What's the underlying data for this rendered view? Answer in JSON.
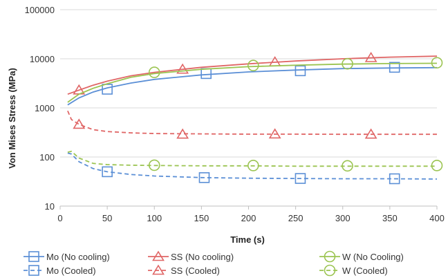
{
  "chart_data": {
    "type": "line",
    "title": "",
    "xlabel": "Time (s)",
    "ylabel": "Von Mises Stress (MPa)",
    "xlim": [
      0,
      400
    ],
    "ylim": [
      10,
      100000
    ],
    "y_scale": "log",
    "grid": "horizontal",
    "legend_position": "bottom",
    "x_ticks": [
      "0",
      "50",
      "100",
      "150",
      "200",
      "250",
      "300",
      "350",
      "400"
    ],
    "y_ticks": [
      "10",
      "100",
      "1000",
      "10000",
      "100000"
    ],
    "series": [
      {
        "name": "Mo (No cooling)",
        "color": "#5b8fd6",
        "dash": "solid",
        "marker": "square",
        "line": [
          [
            8,
            1150
          ],
          [
            20,
            1600
          ],
          [
            35,
            2100
          ],
          [
            50,
            2550
          ],
          [
            75,
            3200
          ],
          [
            100,
            3800
          ],
          [
            150,
            4700
          ],
          [
            200,
            5400
          ],
          [
            250,
            5900
          ],
          [
            300,
            6300
          ],
          [
            350,
            6500
          ],
          [
            400,
            6600
          ]
        ],
        "markers": [
          [
            50,
            2400
          ],
          [
            155,
            5000
          ],
          [
            255,
            5700
          ],
          [
            355,
            6700
          ]
        ]
      },
      {
        "name": "SS (No cooling)",
        "color": "#e06666",
        "dash": "solid",
        "marker": "triangle",
        "line": [
          [
            8,
            1900
          ],
          [
            20,
            2300
          ],
          [
            35,
            2900
          ],
          [
            50,
            3500
          ],
          [
            75,
            4500
          ],
          [
            100,
            5300
          ],
          [
            150,
            6700
          ],
          [
            200,
            7900
          ],
          [
            250,
            9000
          ],
          [
            300,
            10000
          ],
          [
            350,
            10800
          ],
          [
            400,
            11300
          ]
        ],
        "markers": [
          [
            20,
            2300
          ],
          [
            130,
            6100
          ],
          [
            228,
            8600
          ],
          [
            330,
            10500
          ]
        ]
      },
      {
        "name": "W (No Cooling)",
        "color": "#9bc451",
        "dash": "solid",
        "marker": "circle",
        "line": [
          [
            8,
            1300
          ],
          [
            20,
            1900
          ],
          [
            35,
            2500
          ],
          [
            50,
            3100
          ],
          [
            75,
            4200
          ],
          [
            100,
            5000
          ],
          [
            150,
            6100
          ],
          [
            200,
            6900
          ],
          [
            250,
            7400
          ],
          [
            300,
            7800
          ],
          [
            350,
            8000
          ],
          [
            400,
            8100
          ]
        ],
        "markers": [
          [
            100,
            5300
          ],
          [
            205,
            7300
          ],
          [
            305,
            7900
          ],
          [
            400,
            8300
          ]
        ]
      },
      {
        "name": "Mo (Cooled)",
        "color": "#5b8fd6",
        "dash": "dashed",
        "marker": "square",
        "line": [
          [
            8,
            120
          ],
          [
            12,
            115
          ],
          [
            20,
            80
          ],
          [
            35,
            58
          ],
          [
            50,
            50
          ],
          [
            75,
            44
          ],
          [
            100,
            41
          ],
          [
            150,
            38
          ],
          [
            200,
            37
          ],
          [
            250,
            36.5
          ],
          [
            300,
            36
          ],
          [
            350,
            36
          ],
          [
            400,
            35.5
          ]
        ],
        "markers": [
          [
            50,
            50
          ],
          [
            153,
            38
          ],
          [
            255,
            36.5
          ],
          [
            355,
            36
          ]
        ]
      },
      {
        "name": "SS (Cooled)",
        "color": "#e06666",
        "dash": "dashed",
        "marker": "triangle",
        "line": [
          [
            8,
            870
          ],
          [
            12,
            580
          ],
          [
            20,
            460
          ],
          [
            35,
            360
          ],
          [
            50,
            330
          ],
          [
            75,
            310
          ],
          [
            100,
            300
          ],
          [
            150,
            295
          ],
          [
            200,
            292
          ],
          [
            250,
            292
          ],
          [
            300,
            290
          ],
          [
            350,
            290
          ],
          [
            400,
            290
          ]
        ],
        "markers": [
          [
            20,
            460
          ],
          [
            130,
            290
          ],
          [
            228,
            292
          ],
          [
            330,
            290
          ]
        ]
      },
      {
        "name": "W (Cooled)",
        "color": "#9bc451",
        "dash": "dashed",
        "marker": "circle",
        "line": [
          [
            8,
            125
          ],
          [
            12,
            130
          ],
          [
            20,
            95
          ],
          [
            35,
            74
          ],
          [
            50,
            70
          ],
          [
            75,
            68
          ],
          [
            100,
            67
          ],
          [
            150,
            66
          ],
          [
            200,
            66
          ],
          [
            250,
            65
          ],
          [
            300,
            65
          ],
          [
            350,
            65
          ],
          [
            400,
            65
          ]
        ],
        "markers": [
          [
            100,
            68
          ],
          [
            205,
            67
          ],
          [
            305,
            66
          ],
          [
            400,
            67
          ]
        ]
      }
    ]
  }
}
